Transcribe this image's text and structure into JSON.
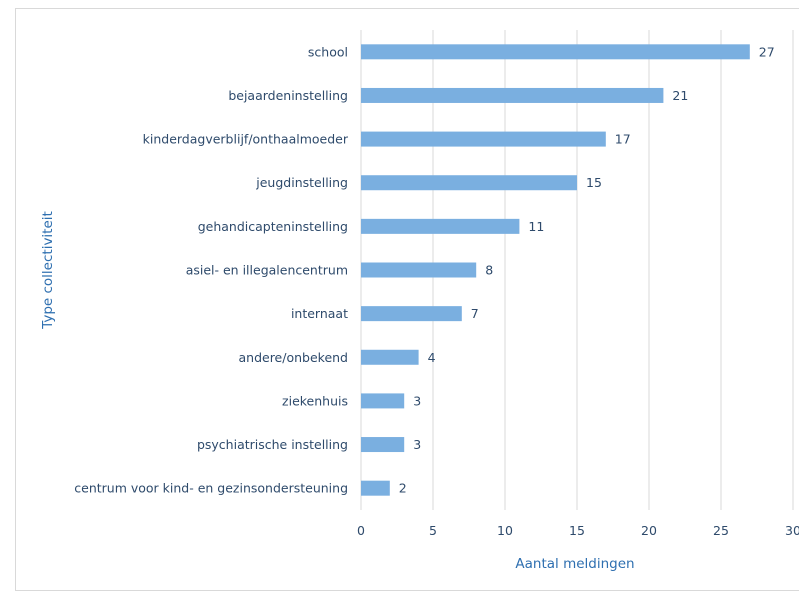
{
  "chart_data": {
    "type": "bar",
    "orientation": "horizontal",
    "title": "",
    "xlabel": "Aantal meldingen",
    "ylabel": "Type collectiviteit",
    "categories": [
      "school",
      "bejaardeninstelling",
      "kinderdagverblijf/onthaalmoeder",
      "jeugdinstelling",
      "gehandicapteninstelling",
      "asiel- en illegalencentrum",
      "internaat",
      "andere/onbekend",
      "ziekenhuis",
      "psychiatrische instelling",
      "centrum voor kind- en gezinsondersteuning"
    ],
    "values": [
      27,
      21,
      17,
      15,
      11,
      8,
      7,
      4,
      3,
      3,
      2
    ],
    "xlim": [
      0,
      30
    ],
    "xticks": [
      "0",
      "5",
      "10",
      "15",
      "20",
      "25",
      "30"
    ],
    "grid": true,
    "legend": "none",
    "colors": {
      "bar": "#7aafe0",
      "grid": "#d9d9d9",
      "text": "#2e4a6b",
      "axis_title": "#2e6fb0"
    }
  }
}
